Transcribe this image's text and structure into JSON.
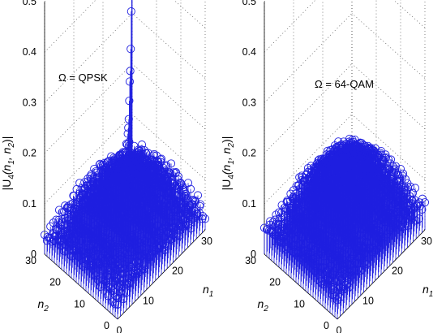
{
  "chart_data": [
    {
      "type": "scatter",
      "subtype": "3d-stem",
      "annotation": "Ω = QPSK",
      "zlabel_prefix": "|U",
      "zlabel_sub": "4",
      "zlabel_args": "(n",
      "zlabel_sub1": "1",
      "zlabel_comma": ", n",
      "zlabel_sub2": "2",
      "zlabel_close": ")|",
      "xlabel": "n",
      "xlabel_sub": "1",
      "ylabel": "n",
      "ylabel_sub": "2",
      "xlim": [
        0,
        30
      ],
      "ylim": [
        0,
        30
      ],
      "zlim": [
        0,
        0.5
      ],
      "xticks": [
        "0",
        "10",
        "20",
        "30"
      ],
      "yticks": [
        "0",
        "10",
        "20",
        "30"
      ],
      "zticks": [
        "0",
        "0.1",
        "0.2",
        "0.3",
        "0.4",
        "0.5"
      ],
      "grid": true,
      "marker": "circle",
      "color": "#1f1fe0",
      "surface": {
        "base": 0.03,
        "noise": 0.015,
        "center_bulge": 0.11,
        "diag_spike": 0.42,
        "peak": 0.5
      }
    },
    {
      "type": "scatter",
      "subtype": "3d-stem",
      "annotation": "Ω = 64-QAM",
      "zlabel_prefix": "|U",
      "zlabel_sub": "4",
      "zlabel_args": "(n",
      "zlabel_sub1": "1",
      "zlabel_comma": ", n",
      "zlabel_sub2": "2",
      "zlabel_close": ")|",
      "xlabel": "n",
      "xlabel_sub": "1",
      "ylabel": "n",
      "ylabel_sub": "2",
      "xlim": [
        0,
        30
      ],
      "ylim": [
        0,
        30
      ],
      "zlim": [
        0,
        0.5
      ],
      "xticks": [
        "0",
        "10",
        "20",
        "30"
      ],
      "yticks": [
        "0",
        "10",
        "20",
        "30"
      ],
      "zticks": [
        "0",
        "0.1",
        "0.2",
        "0.3",
        "0.4",
        "0.5"
      ],
      "grid": true,
      "marker": "circle",
      "color": "#1f1fe0",
      "surface": {
        "base": 0.035,
        "noise": 0.015,
        "center_bulge": 0.14,
        "diag_spike": 0.0,
        "peak": 0.2
      }
    }
  ]
}
